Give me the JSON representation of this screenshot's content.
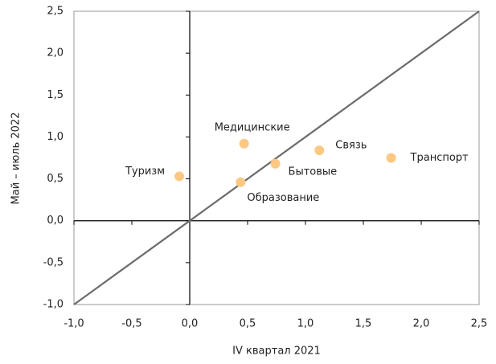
{
  "chart_data": {
    "type": "scatter",
    "xlabel": "IV квартал 2021",
    "ylabel": "Май – июль 2022",
    "labels": [
      "Туризм",
      "Медицинские",
      "Бытовые",
      "Образование",
      "Связь",
      "Транспорт"
    ],
    "x": [
      -0.09,
      0.47,
      0.74,
      0.44,
      1.12,
      1.74
    ],
    "values": [
      0.53,
      0.92,
      0.68,
      0.46,
      0.84,
      0.75
    ],
    "color": "#fdc882",
    "xlim": [
      -1.0,
      2.5
    ],
    "xticks": [
      {
        "value": -1.0,
        "label": "-1,0"
      },
      {
        "value": -0.5,
        "label": "-0,5"
      },
      {
        "value": 0,
        "label": "0,0"
      },
      {
        "value": 0.5,
        "label": "0,5"
      },
      {
        "value": 1.0,
        "label": "1,0"
      },
      {
        "value": 1.5,
        "label": "1,5"
      },
      {
        "value": 2.0,
        "label": "2,0"
      },
      {
        "value": 2.5,
        "label": "2,5"
      }
    ],
    "ylim": [
      -1.0,
      2.5
    ],
    "yticks": [
      {
        "value": -1.0,
        "label": "-1,0"
      },
      {
        "value": -0.5,
        "label": "-0,5"
      },
      {
        "value": 0,
        "label": "0,0"
      },
      {
        "value": 0.5,
        "label": "0,5"
      },
      {
        "value": 1.0,
        "label": "1,0"
      },
      {
        "value": 1.5,
        "label": "1,5"
      },
      {
        "value": 2.0,
        "label": "2,0"
      },
      {
        "value": 2.5,
        "label": "2,5"
      }
    ]
  }
}
